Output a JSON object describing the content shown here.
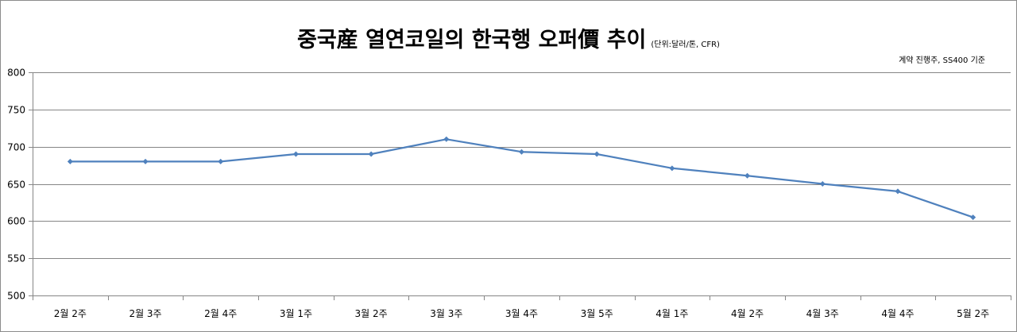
{
  "chart_data": {
    "type": "line",
    "title": "중국産 열연코일의 한국행 오퍼價 추이",
    "unit_note": "(단위:달러/톤, CFR)",
    "annotation": "계약 진행주, SS400 기준",
    "categories": [
      "2월 2주",
      "2월 3주",
      "2월 4주",
      "3월 1주",
      "3월 2주",
      "3월 3주",
      "3월 4주",
      "3월 5주",
      "4월 1주",
      "4월 2주",
      "4월 3주",
      "4월 4주",
      "5월 2주"
    ],
    "series": [
      {
        "values": [
          680,
          680,
          680,
          690,
          690,
          710,
          693,
          690,
          671,
          661,
          650,
          640,
          605
        ],
        "color": "#4f81bd"
      }
    ],
    "ylim": [
      500,
      800
    ],
    "yticks": [
      500,
      550,
      600,
      650,
      700,
      750,
      800
    ],
    "grid": true,
    "legend": "none"
  }
}
